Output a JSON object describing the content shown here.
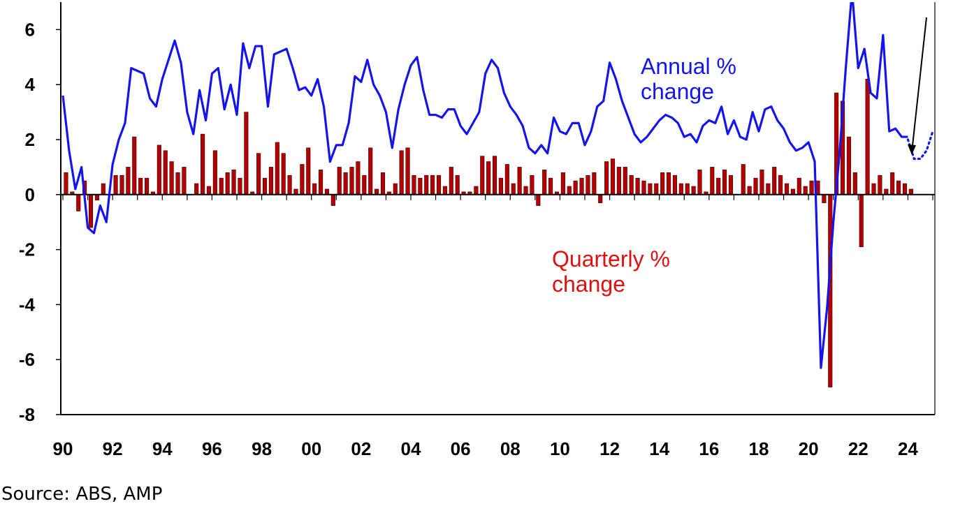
{
  "chart_data": {
    "type": "bar+line",
    "title": "",
    "xlabel": "",
    "ylabel": "",
    "ylim": [
      -8,
      7
    ],
    "y_ticks": [
      "6",
      "4",
      "2",
      "0",
      "-2",
      "-4",
      "-6",
      "-8"
    ],
    "x_ticks": [
      "90",
      "92",
      "94",
      "96",
      "98",
      "00",
      "02",
      "04",
      "06",
      "08",
      "10",
      "12",
      "14",
      "16",
      "18",
      "20",
      "22",
      "24"
    ],
    "x_range": [
      1990.0,
      2025.0
    ],
    "grid": false,
    "annotations": {
      "annual": "Annual % change",
      "quarterly": "Quarterly % change"
    },
    "colors": {
      "annual": "#1414f0",
      "quarterly": "#b40000",
      "annual_label": "#1414f0",
      "quarterly_label": "#e01010"
    },
    "series": [
      {
        "name": "Quarterly % change",
        "kind": "bar",
        "x_start": 1990.0,
        "step": 0.25,
        "values": [
          0.8,
          0.1,
          -0.6,
          0.5,
          -1.2,
          -0.2,
          0.4,
          0.0,
          0.7,
          0.7,
          1.0,
          2.1,
          0.6,
          0.6,
          0.1,
          1.8,
          1.6,
          1.2,
          0.8,
          1.0,
          0.0,
          0.4,
          2.2,
          0.3,
          1.6,
          0.6,
          0.8,
          0.9,
          0.6,
          3.0,
          0.1,
          1.5,
          0.6,
          1.0,
          1.9,
          1.5,
          0.7,
          0.2,
          1.1,
          1.7,
          0.4,
          0.9,
          0.2,
          -0.4,
          1.0,
          0.8,
          1.0,
          1.2,
          0.7,
          1.7,
          0.2,
          0.8,
          0.1,
          0.4,
          1.6,
          1.7,
          0.7,
          0.6,
          0.7,
          0.7,
          0.7,
          0.3,
          1.0,
          0.7,
          0.1,
          0.1,
          0.3,
          1.4,
          1.2,
          1.4,
          0.6,
          1.1,
          0.4,
          1.0,
          0.3,
          0.7,
          -0.4,
          0.9,
          0.6,
          0.1,
          0.8,
          0.3,
          0.5,
          0.6,
          0.7,
          0.8,
          -0.3,
          1.2,
          1.3,
          1.0,
          1.0,
          0.7,
          0.6,
          0.5,
          0.4,
          0.4,
          0.8,
          0.8,
          0.7,
          0.4,
          0.4,
          0.3,
          0.9,
          0.1,
          1.0,
          0.6,
          0.9,
          0.7,
          0.0,
          1.1,
          0.3,
          0.6,
          0.9,
          0.4,
          1.0,
          0.7,
          0.4,
          0.2,
          0.6,
          0.3,
          0.5,
          0.5,
          -0.3,
          -7.0,
          3.7,
          3.4,
          2.1,
          0.8,
          -1.9,
          4.2,
          0.4,
          0.7,
          0.2,
          0.8,
          0.5,
          0.4,
          0.2
        ]
      },
      {
        "name": "Annual % change",
        "kind": "line",
        "x_start": 1990.0,
        "step": 0.25,
        "values": [
          3.6,
          1.6,
          0.2,
          1.0,
          -1.2,
          -1.4,
          -0.4,
          -1.0,
          1.1,
          2.0,
          2.6,
          4.6,
          4.5,
          4.4,
          3.5,
          3.2,
          4.2,
          4.9,
          5.6,
          4.8,
          3.0,
          2.2,
          3.8,
          2.7,
          4.4,
          4.6,
          3.1,
          4.0,
          2.9,
          5.5,
          4.6,
          5.4,
          5.4,
          3.2,
          5.1,
          5.2,
          5.3,
          4.6,
          3.8,
          3.9,
          3.6,
          4.2,
          3.2,
          1.2,
          1.8,
          1.8,
          2.6,
          4.3,
          4.1,
          4.9,
          4.0,
          3.6,
          3.0,
          1.7,
          3.1,
          4.0,
          4.7,
          5.0,
          3.8,
          2.9,
          2.9,
          2.8,
          3.1,
          3.1,
          2.5,
          2.2,
          2.6,
          3.0,
          4.4,
          4.9,
          4.6,
          3.7,
          3.2,
          2.9,
          2.5,
          1.7,
          1.5,
          1.8,
          1.5,
          2.8,
          2.3,
          2.2,
          2.6,
          2.6,
          1.8,
          2.3,
          3.2,
          3.4,
          4.8,
          4.2,
          3.4,
          2.8,
          2.2,
          1.9,
          2.1,
          2.4,
          2.7,
          2.9,
          2.8,
          2.6,
          2.1,
          2.2,
          1.9,
          2.5,
          2.7,
          2.6,
          3.2,
          2.2,
          2.7,
          2.1,
          2.0,
          3.0,
          2.3,
          3.1,
          3.2,
          2.7,
          2.4,
          1.9,
          1.6,
          1.7,
          1.9,
          1.2,
          -6.3,
          -4.1,
          -1.0,
          1.5,
          4.6,
          7.4,
          4.6,
          5.3,
          3.7,
          3.5,
          5.8,
          2.3,
          2.4,
          2.1,
          2.1
        ]
      },
      {
        "name": "",
        "kind": "forecast",
        "style": "dotted",
        "x": [
          2024.0,
          2024.25,
          2024.5,
          2024.75,
          2025.0
        ],
        "values": [
          2.0,
          1.3,
          1.3,
          1.6,
          2.3
        ]
      }
    ]
  },
  "footer": {
    "source": "Source: ABS, AMP"
  }
}
